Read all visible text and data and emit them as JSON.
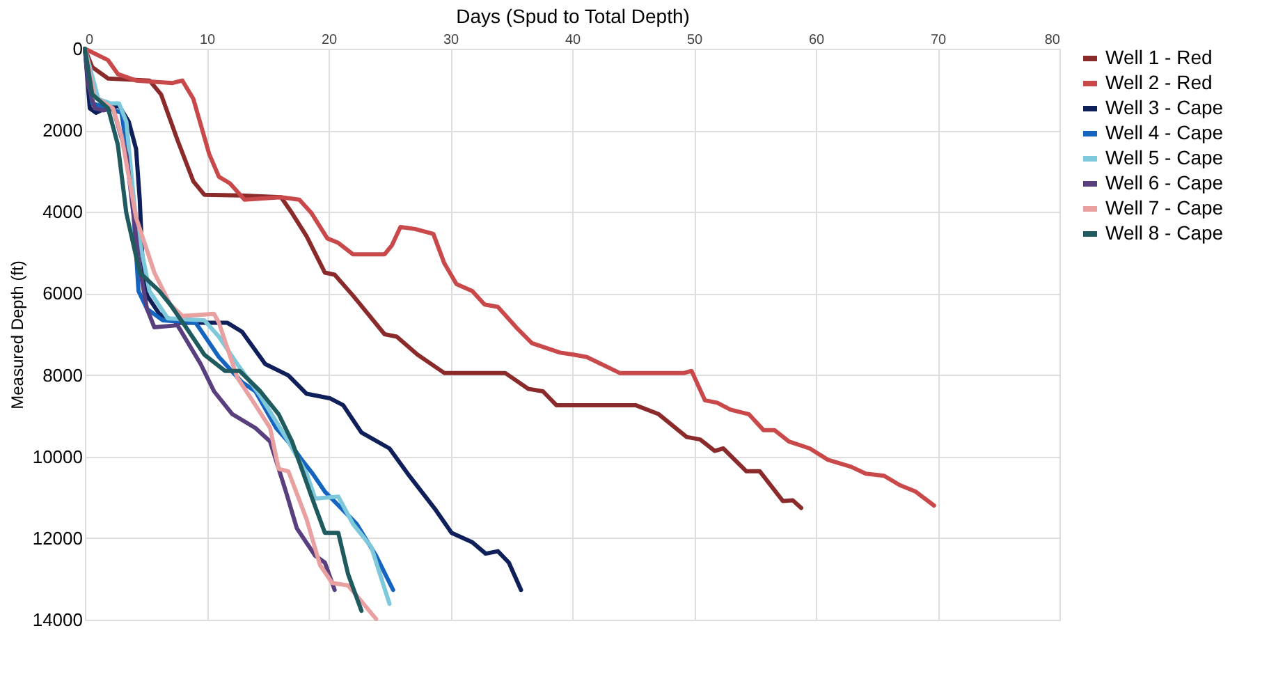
{
  "chart_data": {
    "type": "line",
    "xlabel": "Days (Spud to Total Depth)",
    "ylabel": "Measured Depth (ft)",
    "xlim": [
      0,
      80
    ],
    "xticks": [
      0,
      10,
      20,
      30,
      40,
      50,
      60,
      70,
      80
    ],
    "ylim": [
      14000,
      0
    ],
    "yticks": [
      0,
      2000,
      4000,
      6000,
      8000,
      10000,
      12000,
      14000
    ],
    "grid": true,
    "legend": "right",
    "marker": "none",
    "line_style": "solid",
    "series": [
      {
        "name": "Well 1 - Red",
        "color": "#8b2a2a",
        "x": [
          0,
          0.6,
          1.9,
          5.3,
          6.25,
          7.6,
          8.9,
          9.8,
          12.9,
          16.1,
          17,
          18.2,
          19.7,
          20.5,
          22,
          24.6,
          25.6,
          27.3,
          29.5,
          34.5,
          36.4,
          37.6,
          38.7,
          45.2,
          47.1,
          49.4,
          50.5,
          51.7,
          52.4,
          54.3,
          55.4,
          57.3,
          58.1,
          58.8
        ],
        "values": [
          0,
          450,
          730,
          780,
          1120,
          2240,
          3250,
          3580,
          3600,
          3640,
          4030,
          4600,
          5490,
          5540,
          6050,
          7000,
          7060,
          7500,
          7950,
          7950,
          8340,
          8400,
          8740,
          8740,
          8960,
          9520,
          9580,
          9860,
          9800,
          10360,
          10360,
          11090,
          11070,
          11260
        ]
      },
      {
        "name": "Well 2 - Red",
        "color": "#c9484a",
        "x": [
          0,
          1.9,
          2.7,
          4.2,
          7.2,
          8,
          8.9,
          10.2,
          11,
          11.9,
          13.1,
          16.1,
          17.6,
          18.6,
          19.9,
          20.8,
          22,
          24.6,
          25.2,
          25.9,
          27.1,
          28.6,
          29.5,
          30.5,
          31.8,
          32.8,
          33.9,
          35.4,
          36.7,
          39,
          40.1,
          41.2,
          43.9,
          49.2,
          49.8,
          50.9,
          51.9,
          53,
          54.5,
          55.7,
          56.6,
          57.8,
          59.5,
          61,
          62.9,
          64.1,
          65.6,
          66.9,
          68.2,
          69.7
        ],
        "values": [
          0,
          280,
          620,
          780,
          840,
          780,
          1230,
          2580,
          3140,
          3300,
          3700,
          3640,
          3700,
          4030,
          4650,
          4760,
          5040,
          5040,
          4820,
          4370,
          4420,
          4540,
          5260,
          5770,
          5940,
          6270,
          6330,
          6830,
          7220,
          7450,
          7500,
          7560,
          7950,
          7950,
          7900,
          8620,
          8680,
          8850,
          8960,
          9350,
          9350,
          9630,
          9800,
          10080,
          10250,
          10420,
          10470,
          10700,
          10860,
          11200
        ]
      },
      {
        "name": "Well 3 - Cape",
        "color": "#0f1f5a",
        "x": [
          0,
          0.4,
          0.9,
          1.7,
          2.8,
          3.6,
          4.2,
          4.5,
          4.7,
          5.1,
          6.1,
          7.6,
          11.7,
          12.9,
          14.8,
          16.7,
          18.2,
          20.1,
          21.2,
          22.7,
          25,
          26.5,
          28.8,
          30.1,
          31.8,
          32.9,
          33.9,
          34.8,
          35.8
        ],
        "values": [
          0,
          1460,
          1570,
          1460,
          1400,
          1790,
          2460,
          3700,
          5040,
          6050,
          6500,
          6720,
          6720,
          6940,
          7730,
          8010,
          8460,
          8570,
          8740,
          9410,
          9800,
          10420,
          11310,
          11870,
          12100,
          12380,
          12320,
          12600,
          13270
        ]
      },
      {
        "name": "Well 4 - Cape",
        "color": "#1565c0",
        "x": [
          0,
          0.6,
          1.9,
          3,
          3.8,
          4.4,
          5.1,
          6.4,
          9.1,
          11,
          12.9,
          14,
          15.7,
          17,
          17.8,
          18.7,
          19.7,
          22.3,
          23.9,
          25.3
        ],
        "values": [
          0,
          1340,
          1460,
          1570,
          3140,
          5940,
          6380,
          6660,
          6720,
          7560,
          8180,
          8400,
          9300,
          9740,
          10080,
          10420,
          10860,
          11650,
          12430,
          13270
        ]
      },
      {
        "name": "Well 5 - Cape",
        "color": "#7ec8dc",
        "x": [
          0,
          1.1,
          2.1,
          2.8,
          3.4,
          4.2,
          5.3,
          6.8,
          9.8,
          11,
          12.5,
          14.4,
          16.7,
          18.2,
          18.9,
          20.8,
          22,
          23.5,
          25
        ],
        "values": [
          0,
          1230,
          1340,
          1340,
          1790,
          4260,
          5940,
          6610,
          6660,
          7060,
          7730,
          8510,
          9630,
          10420,
          11030,
          10980,
          11650,
          12210,
          13610
        ]
      },
      {
        "name": "Well 6 - Cape",
        "color": "#5a3f7e",
        "x": [
          0,
          0.3,
          0.8,
          1.5,
          2.3,
          3.4,
          4.5,
          5.1,
          5.7,
          7.6,
          9.5,
          10.6,
          12.1,
          14,
          15.2,
          16.5,
          17.4,
          18.9,
          19.7,
          20.5
        ],
        "values": [
          0,
          900,
          1460,
          1510,
          1460,
          2580,
          5380,
          6380,
          6830,
          6780,
          7730,
          8400,
          8960,
          9300,
          9630,
          10860,
          11760,
          12430,
          12600,
          13270
        ]
      },
      {
        "name": "Well 7 - Cape",
        "color": "#e8a0a0",
        "x": [
          0,
          0.8,
          2.3,
          3,
          4.2,
          5.7,
          7,
          8,
          10.6,
          11,
          12.5,
          14,
          15.2,
          15.9,
          16.7,
          18.2,
          19.3,
          20.3,
          21.6,
          22.7,
          23.9
        ],
        "values": [
          0,
          1180,
          1460,
          2130,
          4140,
          5490,
          6270,
          6550,
          6500,
          6720,
          8060,
          8740,
          9300,
          10300,
          10360,
          11540,
          12660,
          13100,
          13160,
          13550,
          13980
        ]
      },
      {
        "name": "Well 8 - Cape",
        "color": "#1e5a5e",
        "x": [
          0,
          0.6,
          1.9,
          2.7,
          3.4,
          4.5,
          6.1,
          7,
          8.3,
          9.8,
          11.5,
          12.7,
          14.4,
          15.9,
          17,
          18.6,
          19.7,
          20.8,
          21.6,
          22.7
        ],
        "values": [
          0,
          1120,
          1460,
          2350,
          4030,
          5490,
          5940,
          6270,
          6830,
          7500,
          7900,
          7900,
          8400,
          8960,
          9630,
          10980,
          11870,
          11870,
          12880,
          13780
        ]
      }
    ]
  }
}
